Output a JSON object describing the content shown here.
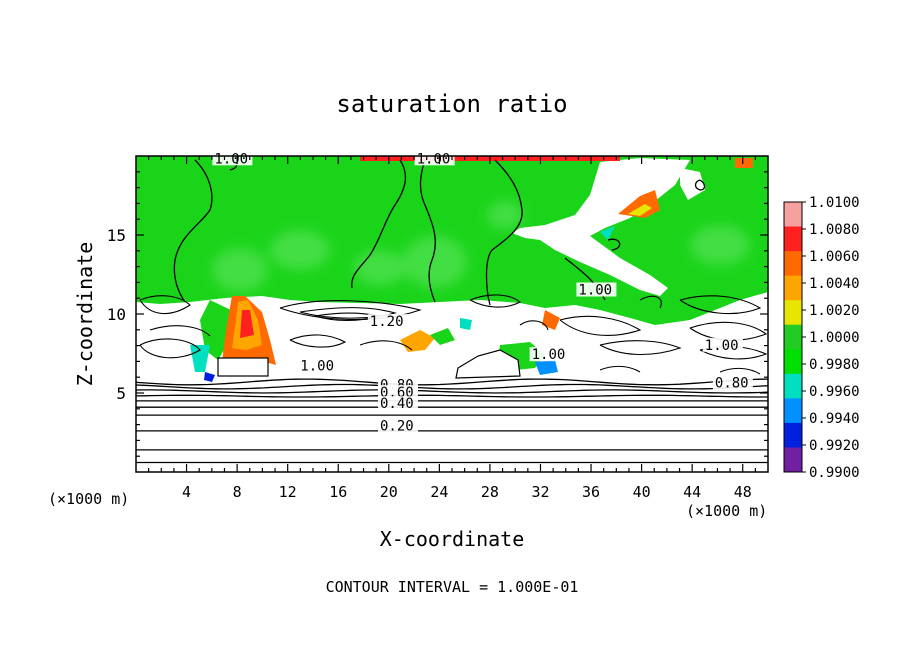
{
  "chart_data": {
    "type": "heatmap",
    "title": "saturation ratio",
    "xlabel": "X-coordinate",
    "ylabel": "Z-coordinate",
    "x_unit_left": "(×1000 m)",
    "x_unit_right": "(×1000 m)",
    "xlim": [
      0,
      50
    ],
    "ylim": [
      0,
      20
    ],
    "xticks": [
      4,
      8,
      12,
      16,
      20,
      24,
      28,
      32,
      36,
      40,
      44,
      48
    ],
    "yticks": [
      5,
      10,
      15
    ],
    "footer": "CONTOUR INTERVAL = 1.000E-01",
    "colorbar": {
      "labels": [
        "1.0100",
        "1.0080",
        "1.0060",
        "1.0040",
        "1.0020",
        "1.0000",
        "0.9980",
        "0.9960",
        "0.9940",
        "0.9920",
        "0.9900"
      ],
      "colors": [
        "#f7a0a0",
        "#ff2020",
        "#ff6a00",
        "#ffa500",
        "#e6e600",
        "#22cc22",
        "#00e000",
        "#00e0c0",
        "#0090ff",
        "#0020e0",
        "#7020a0"
      ]
    },
    "contour_labels": [
      {
        "text": "1.00",
        "x": 6.2,
        "y": 19.6
      },
      {
        "text": "1.00",
        "x": 22.2,
        "y": 19.6
      },
      {
        "text": "1.00",
        "x": 35.0,
        "y": 11.3
      },
      {
        "text": "1.20",
        "x": 18.5,
        "y": 9.3
      },
      {
        "text": "1.00",
        "x": 13.0,
        "y": 6.5
      },
      {
        "text": "1.00",
        "x": 31.3,
        "y": 7.2
      },
      {
        "text": "1.00",
        "x": 45.0,
        "y": 7.8
      },
      {
        "text": "0.80",
        "x": 19.3,
        "y": 5.3
      },
      {
        "text": "0.60",
        "x": 19.3,
        "y": 4.8
      },
      {
        "text": "0.40",
        "x": 19.3,
        "y": 4.1
      },
      {
        "text": "0.20",
        "x": 19.3,
        "y": 2.7
      },
      {
        "text": "0.80",
        "x": 45.8,
        "y": 5.4
      }
    ],
    "background_contours": [
      0.6,
      1.4,
      2.6,
      3.6,
      4.1,
      4.5,
      4.8,
      5.1,
      5.4,
      5.7
    ]
  }
}
